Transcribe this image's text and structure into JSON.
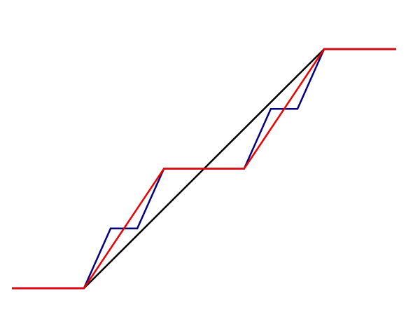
{
  "chart_data": {
    "type": "line",
    "xlim": [
      -0.3,
      1.3
    ],
    "ylim": [
      0,
      1
    ],
    "series": [
      {
        "color": "#000000",
        "x": [
          -0.3,
          0,
          1,
          1.3
        ],
        "values": [
          0,
          0,
          1,
          1
        ]
      },
      {
        "color": "#000080",
        "x": [
          -0.3,
          0,
          0.111,
          0.222,
          0.333,
          0.667,
          0.778,
          0.889,
          1,
          1.3
        ],
        "values": [
          0,
          0,
          0.25,
          0.25,
          0.5,
          0.5,
          0.75,
          0.75,
          1,
          1
        ]
      },
      {
        "color": "#ee0000",
        "x": [
          -0.3,
          0,
          0.333,
          0.667,
          1,
          1.3
        ],
        "values": [
          0,
          0,
          0.5,
          0.5,
          1,
          1
        ]
      }
    ]
  }
}
